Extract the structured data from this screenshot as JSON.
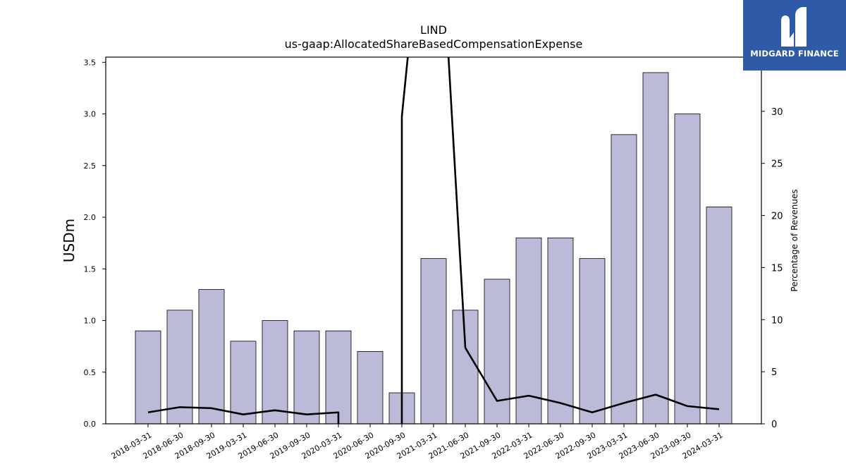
{
  "chart_data": {
    "type": "bar",
    "title": "LIND",
    "subtitle": "us-gaap:AllocatedShareBasedCompensationExpense",
    "ylabel": "USDm",
    "ylabel_right": "Percentage of Revenues",
    "categories": [
      "2018-03-31",
      "2018-06-30",
      "2018-09-30",
      "2019-03-31",
      "2019-06-30",
      "2019-09-30",
      "2020-03-31",
      "2020-06-30",
      "2020-09-30",
      "2021-03-31",
      "2021-06-30",
      "2021-09-30",
      "2022-03-31",
      "2022-06-30",
      "2022-09-30",
      "2023-03-31",
      "2023-06-30",
      "2023-09-30",
      "2024-03-31"
    ],
    "values": [
      0.9,
      1.1,
      1.3,
      0.8,
      1.0,
      0.9,
      0.9,
      0.7,
      0.3,
      1.6,
      1.1,
      1.4,
      1.8,
      1.8,
      1.6,
      2.8,
      3.4,
      3.0,
      2.1
    ],
    "line_series": {
      "name": "",
      "axis": "right",
      "values": [
        1.1,
        1.6,
        1.5,
        0.9,
        1.3,
        0.9,
        1.1,
        null,
        29.5,
        60,
        7.3,
        2.2,
        2.7,
        2.0,
        1.1,
        2.0,
        2.8,
        1.7,
        1.4
      ]
    },
    "ylim": [
      0,
      3.55
    ],
    "ylim_right": [
      0,
      35.2
    ],
    "yticks": [
      0.0,
      0.5,
      1.0,
      1.5,
      2.0,
      2.5,
      3.0,
      3.5
    ],
    "yticks_right": [
      0,
      5,
      10,
      15,
      20,
      25,
      30
    ],
    "bar_color": "#bcbad9",
    "bar_edge": "#000000",
    "line_color": "#000000",
    "grid": false
  },
  "logo": {
    "text": "MIDGARD FINANCE",
    "background": "#2f5aa7"
  }
}
